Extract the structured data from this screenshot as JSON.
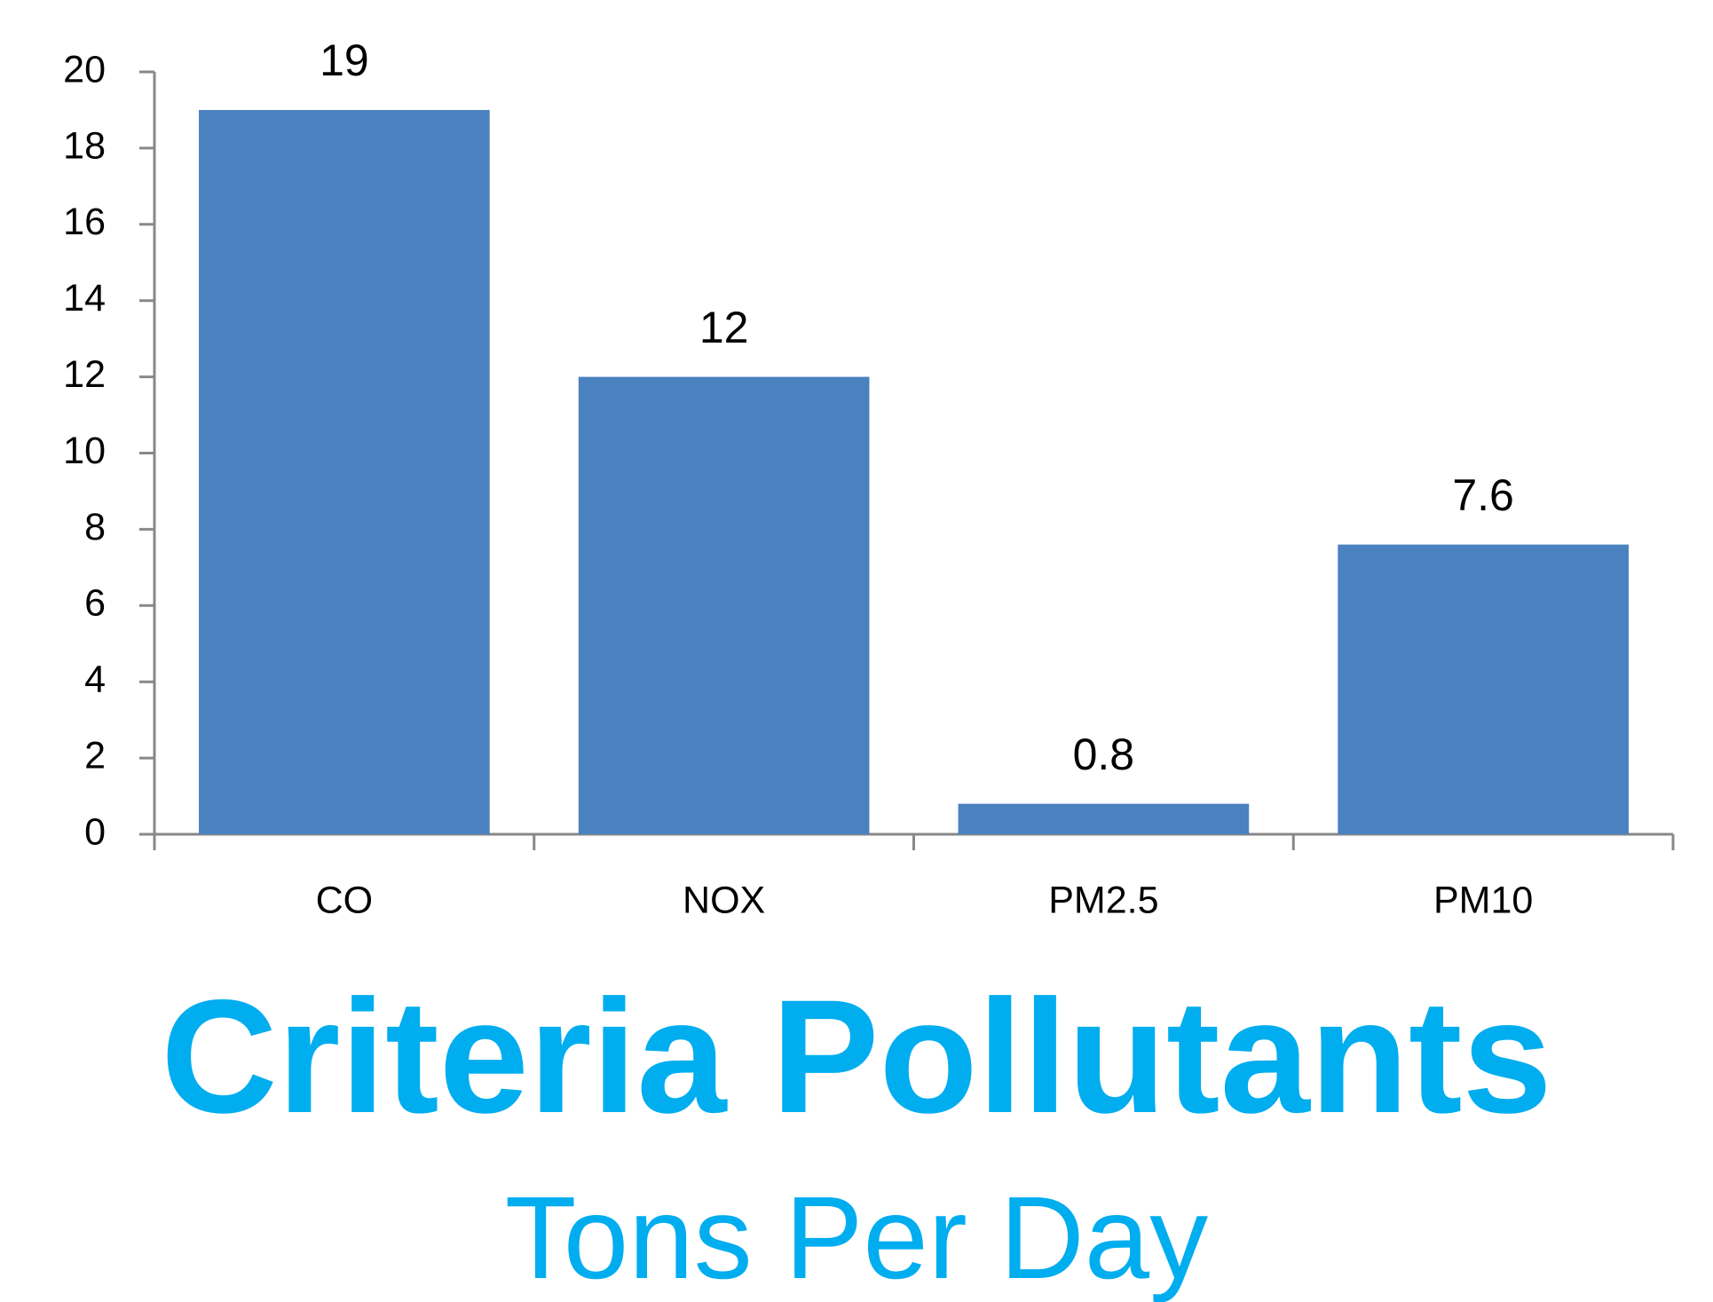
{
  "chart_data": {
    "type": "bar",
    "title": "Criteria Pollutants",
    "subtitle": "Tons Per Day",
    "categories": [
      "CO",
      "NOX",
      "PM2.5",
      "PM10"
    ],
    "values": [
      19,
      12,
      0.8,
      7.6
    ],
    "color": "#4a81bf",
    "ylim": [
      0,
      20
    ],
    "yticks": [
      0,
      2,
      4,
      6,
      8,
      10,
      12,
      14,
      16,
      18,
      20
    ],
    "grid": false
  }
}
